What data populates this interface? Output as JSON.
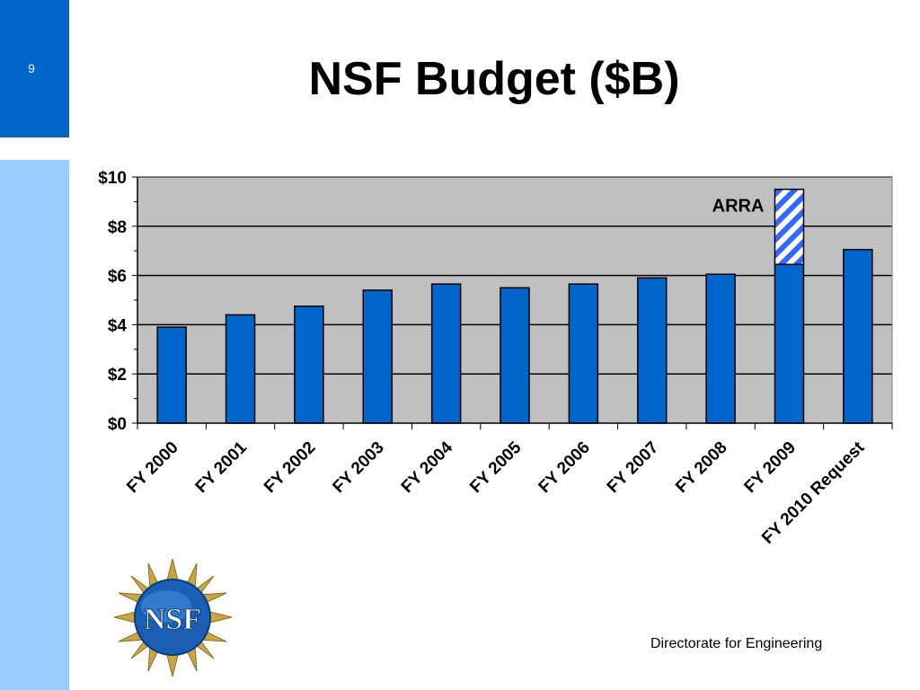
{
  "slide": {
    "number": "9",
    "title": "NSF Budget ($B)",
    "footer": "Directorate for Engineering"
  },
  "logo": {
    "text": "NSF"
  },
  "colors": {
    "accent_dark": "#0066cc",
    "accent_light": "#99ccff",
    "bar": "#0066cc",
    "plot_bg": "#c0c0c0",
    "arra_stripe": "#3366ff"
  },
  "chart_data": {
    "type": "bar",
    "title": "",
    "xlabel": "",
    "ylabel": "",
    "ylim": [
      0,
      10
    ],
    "y_ticks": [
      "$0",
      "$2",
      "$4",
      "$6",
      "$8",
      "$10"
    ],
    "grid": true,
    "categories": [
      "FY 2000",
      "FY 2001",
      "FY 2002",
      "FY 2003",
      "FY 2004",
      "FY 2005",
      "FY 2006",
      "FY 2007",
      "FY 2008",
      "FY 2009",
      "FY 2010 Request"
    ],
    "series": [
      {
        "values": [
          3.9,
          4.4,
          4.75,
          5.4,
          5.65,
          5.5,
          5.65,
          5.9,
          6.05,
          6.45,
          7.05
        ]
      },
      {
        "name": "ARRA",
        "values": [
          0,
          0,
          0,
          0,
          0,
          0,
          0,
          0,
          0,
          3.05,
          0
        ]
      }
    ],
    "annotation": "ARRA"
  }
}
